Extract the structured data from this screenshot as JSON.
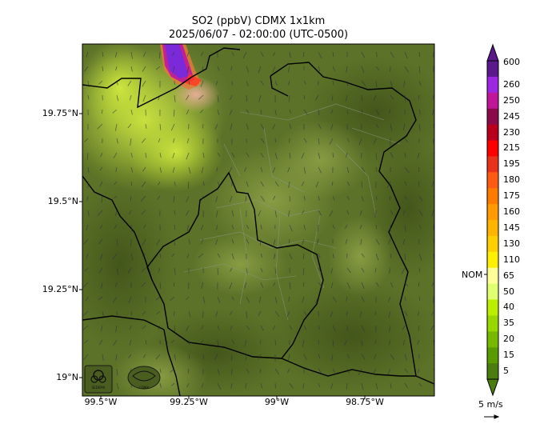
{
  "title_line1": "SO2 (ppbV) CDMX 1x1km",
  "title_line2": "2025/06/07 - 02:00:00 (UTC-0500)",
  "lat_ticks": [
    "19.75°N",
    "19.5°N",
    "19.25°N",
    "19°N"
  ],
  "lon_ticks": [
    "99.5°W",
    "99.25°W",
    "99°W",
    "98.75°W"
  ],
  "colorbar": {
    "labels": [
      "600",
      "260",
      "250",
      "245",
      "230",
      "215",
      "195",
      "180",
      "175",
      "160",
      "145",
      "130",
      "110",
      "65",
      "50",
      "40",
      "35",
      "20",
      "15",
      "5"
    ],
    "colors": [
      "#5a1a8c",
      "#9c27e0",
      "#c0179a",
      "#8b0a4a",
      "#b8001e",
      "#ff0000",
      "#e8321c",
      "#ff5a14",
      "#ff7a00",
      "#ff9a00",
      "#ffb400",
      "#ffd000",
      "#ffef00",
      "#ffff9a",
      "#dfff70",
      "#b8f000",
      "#98d800",
      "#78b800",
      "#5a9c00",
      "#4a7c10"
    ],
    "nom_label": "NOM"
  },
  "wind_label": "5 m/s",
  "logos": [
    "SEDEMA",
    "CDMX"
  ],
  "colors": {
    "terrain_dark": "#4e6420",
    "terrain_mid": "#6b8032",
    "terrain_light": "#9aae4e",
    "plume_purple": "#7a2ad8",
    "plume_yellow": "#d8f040",
    "boundary": "#000000"
  }
}
